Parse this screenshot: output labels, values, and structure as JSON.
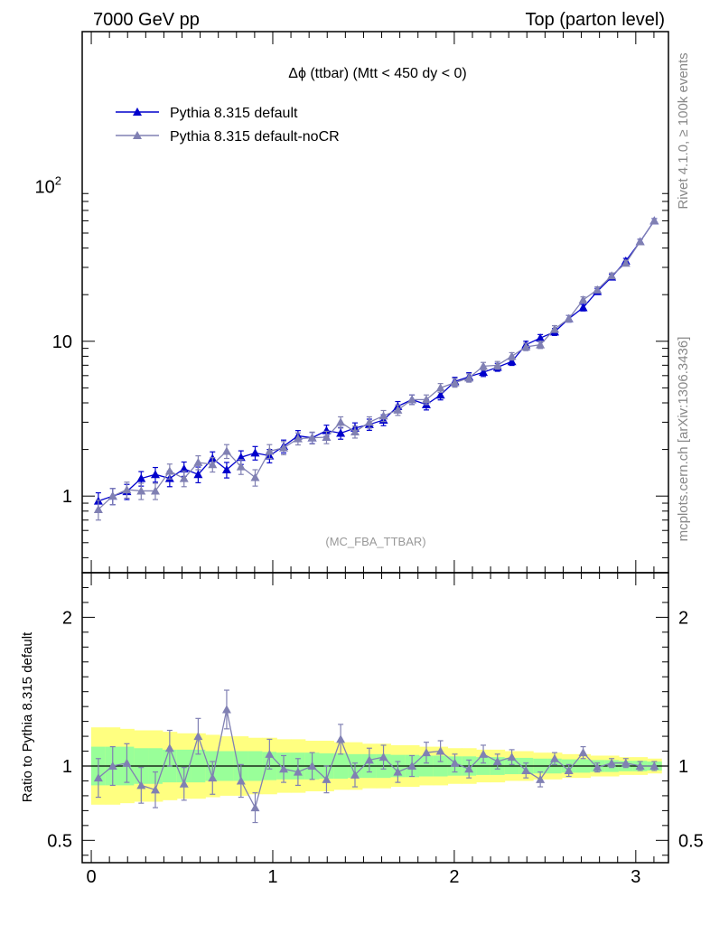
{
  "header": {
    "left": "7000 GeV pp",
    "right": "Top (parton level)"
  },
  "side": {
    "rivet": "Rivet 4.1.0, ≥ 100k events",
    "mcplots": "mcplots.cern.ch [arXiv:1306.3436]"
  },
  "colors": {
    "default": "#0000cc",
    "nocr": "#8080b3",
    "band_inner": "#99ff99",
    "band_outer": "#ffff80"
  },
  "chart_data": [
    {
      "type": "line",
      "title": "Δϕ (ttbar) (Mtt < 450 dy < 0)",
      "watermark": "(MC_FBA_TTBAR)",
      "yscale": "log",
      "xlim": [
        -0.05,
        3.18
      ],
      "ylim": [
        0.32,
        1000
      ],
      "xlabel": "",
      "ylabel": "",
      "yticks": [
        1,
        10,
        100
      ],
      "ytick_labels": [
        "1",
        "10",
        "10^2"
      ],
      "legend_position": "top-left",
      "x": [
        0.039,
        0.118,
        0.196,
        0.275,
        0.353,
        0.432,
        0.511,
        0.589,
        0.668,
        0.746,
        0.825,
        0.903,
        0.982,
        1.06,
        1.139,
        1.217,
        1.296,
        1.374,
        1.453,
        1.532,
        1.61,
        1.689,
        1.767,
        1.846,
        1.924,
        2.003,
        2.081,
        2.16,
        2.238,
        2.317,
        2.395,
        2.474,
        2.553,
        2.631,
        2.71,
        2.788,
        2.867,
        2.945,
        3.024,
        3.102
      ],
      "series": [
        {
          "name": "Pythia 8.315 default",
          "values": [
            0.93,
            1.0,
            1.07,
            1.3,
            1.38,
            1.3,
            1.5,
            1.38,
            1.75,
            1.48,
            1.78,
            1.9,
            1.82,
            2.1,
            2.45,
            2.38,
            2.65,
            2.55,
            2.75,
            2.9,
            3.1,
            3.8,
            4.2,
            3.9,
            4.5,
            5.5,
            5.9,
            6.3,
            6.8,
            7.4,
            9.5,
            10.5,
            11.5,
            14.0,
            16.5,
            21.0,
            26.0,
            33.0,
            44.0,
            60.0
          ],
          "errors": [
            0.12,
            0.12,
            0.12,
            0.14,
            0.15,
            0.15,
            0.16,
            0.16,
            0.18,
            0.17,
            0.18,
            0.19,
            0.18,
            0.2,
            0.2,
            0.2,
            0.22,
            0.22,
            0.22,
            0.24,
            0.25,
            0.28,
            0.3,
            0.3,
            0.32,
            0.35,
            0.36,
            0.38,
            0.4,
            0.42,
            0.5,
            0.55,
            0.6,
            0.7,
            0.8,
            0.95,
            1.1,
            1.3,
            1.6,
            2.0
          ]
        },
        {
          "name": "Pythia 8.315 default-noCR",
          "values": [
            0.82,
            1.0,
            1.1,
            1.08,
            1.08,
            1.45,
            1.3,
            1.65,
            1.6,
            1.95,
            1.55,
            1.32,
            1.95,
            2.05,
            2.35,
            2.38,
            2.4,
            3.0,
            2.6,
            3.0,
            3.3,
            3.6,
            4.2,
            4.2,
            5.0,
            5.4,
            5.8,
            6.9,
            7.0,
            8.0,
            9.2,
            9.5,
            12.0,
            14.0,
            18.5,
            21.5,
            26.5,
            32.0,
            44.0,
            60.0
          ],
          "errors": [
            0.12,
            0.12,
            0.13,
            0.13,
            0.13,
            0.16,
            0.15,
            0.17,
            0.17,
            0.2,
            0.17,
            0.16,
            0.2,
            0.2,
            0.21,
            0.21,
            0.22,
            0.25,
            0.23,
            0.25,
            0.27,
            0.28,
            0.3,
            0.3,
            0.33,
            0.35,
            0.36,
            0.4,
            0.4,
            0.44,
            0.5,
            0.52,
            0.6,
            0.7,
            0.85,
            0.95,
            1.1,
            1.3,
            1.6,
            2.0
          ]
        }
      ]
    },
    {
      "type": "line",
      "title": "",
      "ylabel": "Ratio to Pythia 8.315 default",
      "xlabel": "",
      "xlim": [
        -0.05,
        3.18
      ],
      "ylim": [
        0.35,
        2.3
      ],
      "yticks": [
        0.5,
        1,
        2
      ],
      "ytick_labels": [
        "0.5",
        "1",
        "2"
      ],
      "xticks": [
        0,
        1,
        2,
        3
      ],
      "xtick_labels": [
        "0",
        "1",
        "2",
        "3"
      ],
      "x": [
        0.039,
        0.118,
        0.196,
        0.275,
        0.353,
        0.432,
        0.511,
        0.589,
        0.668,
        0.746,
        0.825,
        0.903,
        0.982,
        1.06,
        1.139,
        1.217,
        1.296,
        1.374,
        1.453,
        1.532,
        1.61,
        1.689,
        1.767,
        1.846,
        1.924,
        2.003,
        2.081,
        2.16,
        2.238,
        2.317,
        2.395,
        2.474,
        2.553,
        2.631,
        2.71,
        2.788,
        2.867,
        2.945,
        3.024,
        3.102
      ],
      "bands": {
        "inner": [
          0.13,
          0.13,
          0.13,
          0.12,
          0.12,
          0.11,
          0.11,
          0.11,
          0.1,
          0.1,
          0.1,
          0.1,
          0.095,
          0.09,
          0.09,
          0.09,
          0.085,
          0.085,
          0.08,
          0.08,
          0.08,
          0.075,
          0.075,
          0.07,
          0.07,
          0.065,
          0.065,
          0.06,
          0.06,
          0.055,
          0.055,
          0.05,
          0.05,
          0.045,
          0.045,
          0.04,
          0.04,
          0.035,
          0.035,
          0.03
        ],
        "outer": [
          0.26,
          0.26,
          0.25,
          0.24,
          0.24,
          0.23,
          0.22,
          0.22,
          0.21,
          0.2,
          0.2,
          0.19,
          0.19,
          0.18,
          0.18,
          0.17,
          0.17,
          0.16,
          0.16,
          0.15,
          0.15,
          0.14,
          0.14,
          0.13,
          0.13,
          0.12,
          0.12,
          0.11,
          0.11,
          0.1,
          0.1,
          0.09,
          0.09,
          0.08,
          0.08,
          0.07,
          0.07,
          0.06,
          0.06,
          0.05
        ]
      },
      "series": [
        {
          "name": "Pythia 8.315 default-noCR",
          "values": [
            0.92,
            1.0,
            1.02,
            0.87,
            0.84,
            1.12,
            0.88,
            1.2,
            0.92,
            1.38,
            0.9,
            0.72,
            1.08,
            0.98,
            0.96,
            1.0,
            0.91,
            1.18,
            0.94,
            1.04,
            1.06,
            0.96,
            1.0,
            1.09,
            1.1,
            1.02,
            0.98,
            1.08,
            1.03,
            1.06,
            0.97,
            0.91,
            1.05,
            0.97,
            1.09,
            0.99,
            1.02,
            1.02,
            1.0,
            1.0
          ],
          "errors": [
            0.13,
            0.13,
            0.13,
            0.12,
            0.12,
            0.12,
            0.11,
            0.12,
            0.11,
            0.13,
            0.11,
            0.1,
            0.1,
            0.09,
            0.09,
            0.09,
            0.09,
            0.1,
            0.08,
            0.08,
            0.08,
            0.07,
            0.07,
            0.07,
            0.07,
            0.06,
            0.06,
            0.06,
            0.05,
            0.05,
            0.05,
            0.05,
            0.04,
            0.04,
            0.04,
            0.03,
            0.03,
            0.03,
            0.03,
            0.03
          ]
        }
      ]
    }
  ]
}
